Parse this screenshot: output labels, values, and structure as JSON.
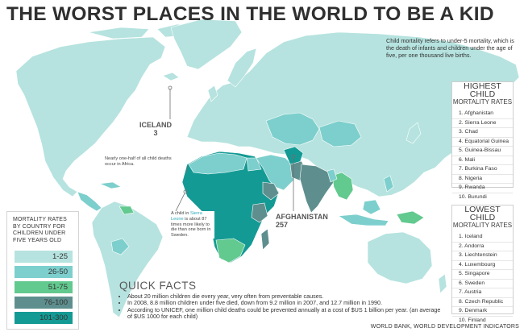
{
  "title": "THE WORST PLACES IN THE WORLD TO BE A KID",
  "intro": "Child mortality refers to under-5 mortality, which is the death of infants and children under the age of five, per one thousand live births.",
  "highest": {
    "title": "HIGHEST CHILD",
    "subtitle": "MORTALITY RATES",
    "items": [
      "1. Afghanistan",
      "2. Sierra Leone",
      "3. Chad",
      "4. Equatorial Guinea",
      "5. Guinea-Bissau",
      "6. Mali",
      "7. Burkina Faso",
      "8. Nigeria",
      "9. Rwanda",
      "10. Burundi"
    ]
  },
  "lowest": {
    "title": "LOWEST CHILD",
    "subtitle": "MORTALITY RATES",
    "items": [
      "1. Iceland",
      "2. Andorra",
      "3. Liechtenstein",
      "4. Luxembourg",
      "5. Singapore",
      "6. Sweden",
      "7. Austria",
      "8. Czech Republic",
      "9. Denmark",
      "10. Finland"
    ]
  },
  "legend": {
    "title": [
      "MORTALITY RATES",
      "BY COUNTRY FOR",
      "CHILDREN UNDER",
      "FIVE YEARS OLD"
    ],
    "items": [
      {
        "label": "1-25",
        "color": "#b6e3df"
      },
      {
        "label": "26-50",
        "color": "#7dcfcd"
      },
      {
        "label": "51-75",
        "color": "#62c98f"
      },
      {
        "label": "76-100",
        "color": "#5e8f8e"
      },
      {
        "label": "101-300",
        "color": "#149a94"
      }
    ]
  },
  "callouts": {
    "iceland_name": "ICELAND",
    "iceland_value": "3",
    "afghanistan_name": "AFGHANISTAN",
    "afghanistan_value": "257",
    "africa_note": "Nearly one-half of all child deaths occur in Africa.",
    "sierra_note_pre": "A child in ",
    "sierra_note_hl": "Sierra Leone",
    "sierra_note_post": " is about 87 times more likely to die than one born in Sweden."
  },
  "facts": {
    "heading": "QUICK FACTS",
    "items": [
      "About 20 million children die every year, very often from preventable causes.",
      "In 2008, 8.8 million children under five died, down from 9.2 million in 2007, and 12.7 million in 1990.",
      "According to UNICEF, one million child deaths could be prevented annually at a cost of $US 1 billion per year. (an average of $US 1000 for each child)"
    ]
  },
  "source": "WORLD BANK, WORLD DEVELOPMENT INDICATORS",
  "colors": {
    "land": "#b6e3df",
    "c26_50": "#7dcfcd",
    "c51_75": "#62c98f",
    "c76_100": "#5e8f8e",
    "c101_300": "#149a94"
  }
}
